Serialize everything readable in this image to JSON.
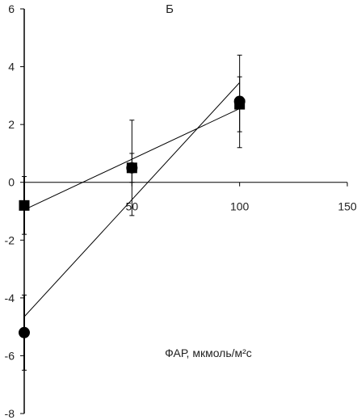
{
  "chart_data": {
    "type": "scatter",
    "title": "Б",
    "xlabel": "ФАР, мкмоль/м²с",
    "ylabel": "",
    "xlim": [
      0,
      150
    ],
    "ylim": [
      -8,
      6
    ],
    "x_ticks": [
      50,
      100,
      150
    ],
    "x_tick_labels": [
      "50",
      "100",
      "150"
    ],
    "y_ticks": [
      -8,
      -6,
      -4,
      -2,
      0,
      2,
      4,
      6
    ],
    "y_tick_labels": [
      "-8",
      "-6",
      "-4",
      "-2",
      "0",
      "2",
      "4",
      "6"
    ],
    "grid": false,
    "legend": "none",
    "series": [
      {
        "marker": "square",
        "color": "#000000",
        "x": [
          0,
          50,
          100
        ],
        "y": [
          -0.8,
          0.5,
          2.7
        ],
        "error": [
          1.0,
          1.65,
          0.95
        ],
        "trendline": {
          "type": "linear",
          "x": [
            0,
            100
          ],
          "y": [
            -0.95,
            2.55
          ]
        }
      },
      {
        "marker": "circle",
        "color": "#000000",
        "x": [
          0,
          50,
          100
        ],
        "y": [
          -5.2,
          0.5,
          2.8
        ],
        "error": [
          1.3,
          0.5,
          1.6
        ],
        "trendline": {
          "type": "linear",
          "x": [
            0,
            100
          ],
          "y": [
            -4.65,
            3.45
          ]
        }
      }
    ]
  }
}
